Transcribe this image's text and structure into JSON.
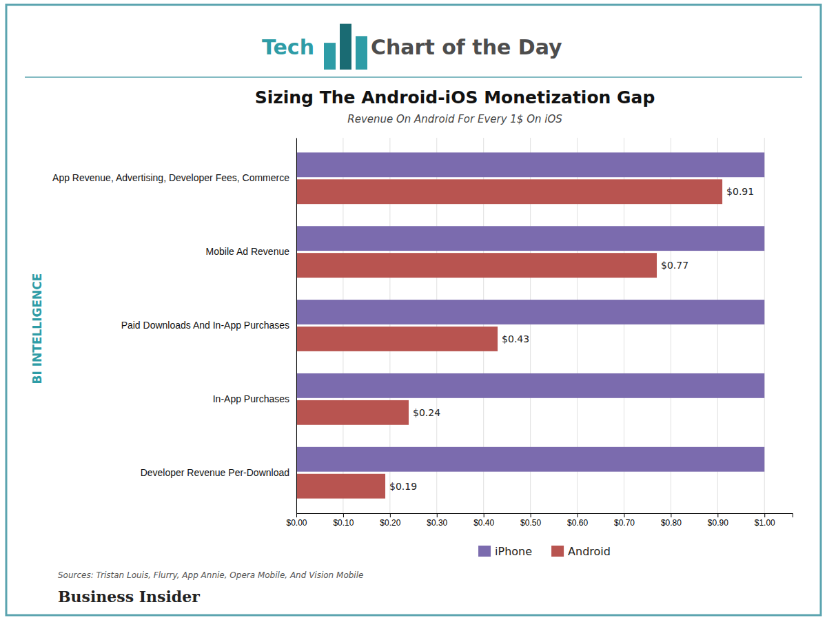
{
  "chart_data": {
    "type": "bar",
    "orientation": "horizontal",
    "title": "Sizing The Android-iOS Monetization Gap",
    "subtitle": "Revenue On Android For Every 1$ On iOS",
    "annotations": [
      "Tech",
      "Chart of the Day",
      "BI INTELLIGENCE",
      "Sources: Tristan Louis, Flurry, App Annie, Opera Mobile, And Vision Mobile",
      "Business Insider"
    ],
    "categories": [
      "App Revenue, Advertising, Developer Fees, Commerce",
      "Mobile Ad Revenue",
      "Paid Downloads And In-App Purchases",
      "In-App Purchases",
      "Developer Revenue Per-Download"
    ],
    "series": [
      {
        "name": "iPhone",
        "color": "#7B6BAE",
        "values": [
          1.0,
          1.0,
          1.0,
          1.0,
          1.0
        ]
      },
      {
        "name": "Android",
        "color": "#B85450",
        "values": [
          0.91,
          0.77,
          0.43,
          0.24,
          0.19
        ],
        "data_labels": true,
        "value_labels": [
          "$0.91",
          "$0.77",
          "$0.43",
          "$0.24",
          "$0.19"
        ]
      }
    ],
    "xlim": [
      0,
      1.06
    ],
    "xticks": [
      {
        "value": 0.0,
        "label": "$0.00"
      },
      {
        "value": 0.1,
        "label": "$0.10"
      },
      {
        "value": 0.2,
        "label": "$0.20"
      },
      {
        "value": 0.3,
        "label": "$0.30"
      },
      {
        "value": 0.4,
        "label": "$0.40"
      },
      {
        "value": 0.5,
        "label": "$0.50"
      },
      {
        "value": 0.6,
        "label": "$0.60"
      },
      {
        "value": 0.7,
        "label": "$0.70"
      },
      {
        "value": 0.8,
        "label": "$0.80"
      },
      {
        "value": 0.9,
        "label": "$0.90"
      },
      {
        "value": 1.0,
        "label": "$1.00"
      }
    ],
    "grid": true,
    "legend": "bottom"
  }
}
